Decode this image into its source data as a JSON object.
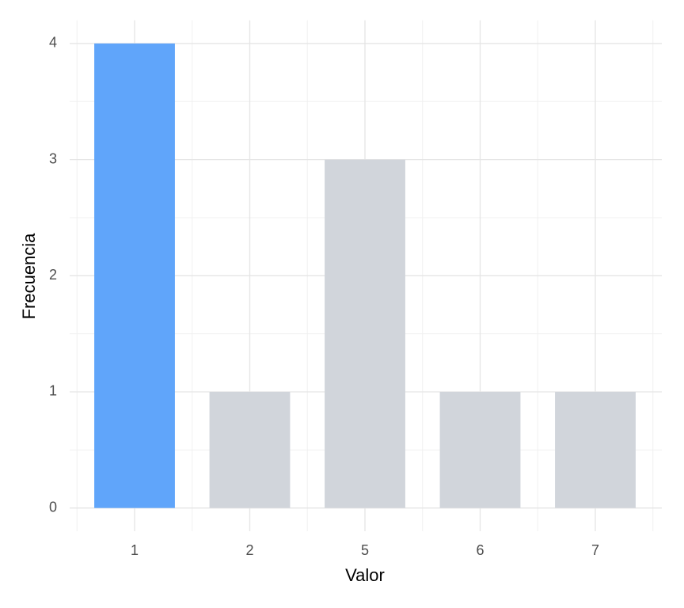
{
  "chart_data": {
    "type": "bar",
    "x_label": "Valor",
    "y_label": "Frecuencia",
    "categories": [
      "1",
      "2",
      "5",
      "6",
      "7"
    ],
    "values": [
      4,
      1,
      3,
      1,
      1
    ],
    "colors": [
      "#60a5fa",
      "#d1d5db",
      "#d1d5db",
      "#d1d5db",
      "#d1d5db"
    ],
    "ylim": [
      -0.2,
      4.2
    ],
    "yticks": [
      0,
      1,
      2,
      3,
      4
    ],
    "grid": true
  }
}
